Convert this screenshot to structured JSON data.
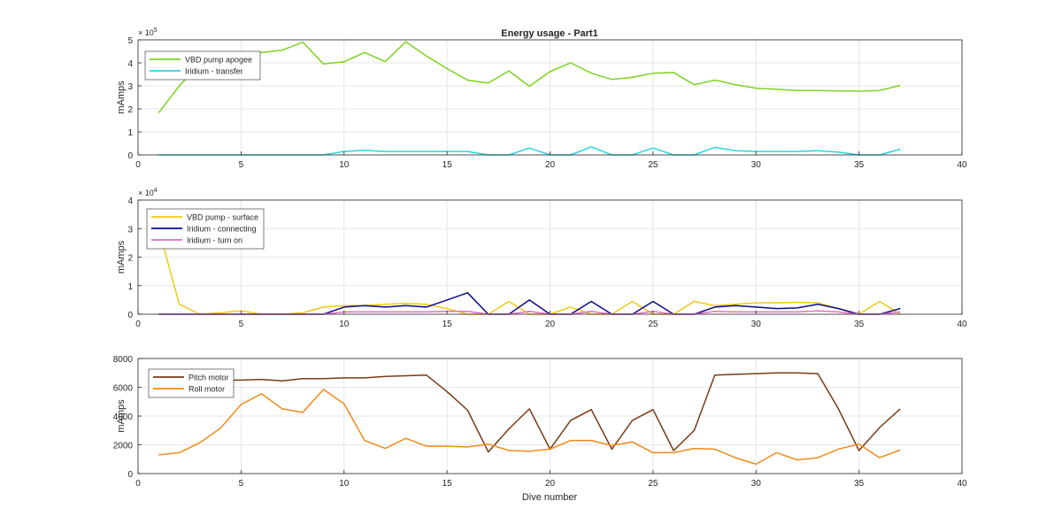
{
  "title": "Energy usage - Part1",
  "xlabel": "Dive number",
  "chart_data": [
    {
      "type": "line",
      "title": "Energy usage - Part1",
      "xlabel": "",
      "ylabel": "mAmps",
      "xlim": [
        0,
        40
      ],
      "ylim": [
        0,
        500000
      ],
      "xticks": [
        0,
        5,
        10,
        15,
        20,
        25,
        30,
        35,
        40
      ],
      "yticks": [
        0,
        100000,
        200000,
        300000,
        400000,
        500000
      ],
      "ytick_labels": [
        "0",
        "1",
        "2",
        "3",
        "4",
        "5"
      ],
      "exponent_base": "× 10",
      "exponent_power": "5",
      "grid": true,
      "legend": "top-left",
      "x": [
        1,
        2,
        3,
        4,
        5,
        6,
        7,
        8,
        9,
        10,
        11,
        12,
        13,
        14,
        15,
        16,
        17,
        18,
        19,
        20,
        21,
        22,
        23,
        24,
        25,
        26,
        27,
        28,
        29,
        30,
        31,
        32,
        33,
        34,
        35,
        36,
        37
      ],
      "series": [
        {
          "name": "VBD pump apogee",
          "color": "#7ed321",
          "values": [
            183000,
            300000,
            395000,
            430000,
            440000,
            445000,
            455000,
            490000,
            395000,
            405000,
            445000,
            405000,
            492000,
            430000,
            375000,
            325000,
            312000,
            365000,
            298000,
            362000,
            400000,
            355000,
            328000,
            337000,
            355000,
            358000,
            305000,
            325000,
            305000,
            290000,
            285000,
            280000,
            280000,
            278000,
            277000,
            280000,
            302000
          ]
        },
        {
          "name": "Iridium - transfer",
          "color": "#2bd4dd",
          "values": [
            0,
            0,
            0,
            0,
            0,
            0,
            0,
            0,
            0,
            15000,
            20000,
            15000,
            15000,
            15000,
            15000,
            15000,
            0,
            0,
            30000,
            0,
            0,
            35000,
            0,
            0,
            30000,
            0,
            0,
            33000,
            18000,
            15000,
            15000,
            15000,
            18000,
            12000,
            0,
            0,
            25000
          ]
        }
      ]
    },
    {
      "type": "line",
      "title": "",
      "xlabel": "",
      "ylabel": "mAmps",
      "xlim": [
        0,
        40
      ],
      "ylim": [
        0,
        40000
      ],
      "xticks": [
        0,
        5,
        10,
        15,
        20,
        25,
        30,
        35,
        40
      ],
      "yticks": [
        0,
        10000,
        20000,
        30000,
        40000
      ],
      "ytick_labels": [
        "0",
        "1",
        "2",
        "3",
        "4"
      ],
      "exponent_base": "× 10",
      "exponent_power": "4",
      "grid": true,
      "legend": "top-left",
      "x": [
        1,
        2,
        3,
        4,
        5,
        6,
        7,
        8,
        9,
        10,
        11,
        12,
        13,
        14,
        15,
        16,
        17,
        18,
        19,
        20,
        21,
        22,
        23,
        24,
        25,
        26,
        27,
        28,
        29,
        30,
        31,
        32,
        33,
        34,
        35,
        36,
        37
      ],
      "series": [
        {
          "name": "VBD pump - surface",
          "color": "#f2c811",
          "values": [
            30000,
            3500,
            0,
            500,
            1200,
            0,
            0,
            500,
            2500,
            3000,
            3000,
            3500,
            3800,
            3500,
            2000,
            0,
            0,
            4500,
            0,
            0,
            2500,
            0,
            0,
            4500,
            0,
            0,
            4500,
            3000,
            3500,
            4000,
            4000,
            4200,
            4000,
            2000,
            0,
            4500,
            0
          ]
        },
        {
          "name": "Iridium - connecting",
          "color": "#0a0a8c",
          "values": [
            0,
            0,
            0,
            0,
            0,
            0,
            0,
            0,
            0,
            2500,
            3000,
            2500,
            3000,
            2500,
            5000,
            7500,
            0,
            0,
            5000,
            0,
            0,
            4500,
            0,
            0,
            4500,
            0,
            0,
            2500,
            3000,
            2500,
            2000,
            2200,
            3500,
            2000,
            0,
            0,
            2000
          ]
        },
        {
          "name": "Iridium - turn on",
          "color": "#e06fc2",
          "values": [
            0,
            0,
            0,
            0,
            0,
            0,
            0,
            0,
            0,
            800,
            800,
            800,
            800,
            800,
            1000,
            1000,
            0,
            0,
            1000,
            0,
            0,
            1000,
            0,
            0,
            1000,
            0,
            0,
            1000,
            800,
            800,
            800,
            800,
            1200,
            800,
            0,
            0,
            800
          ]
        }
      ]
    },
    {
      "type": "line",
      "title": "",
      "xlabel": "Dive number",
      "ylabel": "mAmps",
      "xlim": [
        0,
        40
      ],
      "ylim": [
        0,
        8000
      ],
      "xticks": [
        0,
        5,
        10,
        15,
        20,
        25,
        30,
        35,
        40
      ],
      "yticks": [
        0,
        2000,
        4000,
        6000,
        8000
      ],
      "ytick_labels": [
        "0",
        "2000",
        "4000",
        "6000",
        "8000"
      ],
      "grid": true,
      "legend": "top-left",
      "x": [
        1,
        2,
        3,
        4,
        5,
        6,
        7,
        8,
        9,
        10,
        11,
        12,
        13,
        14,
        15,
        16,
        17,
        18,
        19,
        20,
        21,
        22,
        23,
        24,
        25,
        26,
        27,
        28,
        29,
        30,
        31,
        32,
        33,
        34,
        35,
        36,
        37
      ],
      "series": [
        {
          "name": "Pitch motor",
          "color": "#7a3a12",
          "values": [
            6400,
            6450,
            6500,
            6480,
            6500,
            6550,
            6450,
            6600,
            6600,
            6650,
            6650,
            6750,
            6800,
            6850,
            5700,
            4400,
            1500,
            3100,
            4500,
            1700,
            3700,
            4450,
            1700,
            3700,
            4450,
            1600,
            3000,
            6850,
            6900,
            6950,
            7000,
            7000,
            6950,
            4500,
            1600,
            3200,
            4500
          ]
        },
        {
          "name": "Roll motor",
          "color": "#f08a1a",
          "values": [
            1300,
            1450,
            2150,
            3150,
            4800,
            5550,
            4500,
            4250,
            5850,
            4850,
            2300,
            1750,
            2450,
            1900,
            1900,
            1850,
            2050,
            1600,
            1550,
            1700,
            2300,
            2300,
            1950,
            2200,
            1450,
            1450,
            1750,
            1700,
            1100,
            650,
            1450,
            950,
            1100,
            1700,
            2050,
            1100,
            1650
          ]
        }
      ]
    }
  ]
}
